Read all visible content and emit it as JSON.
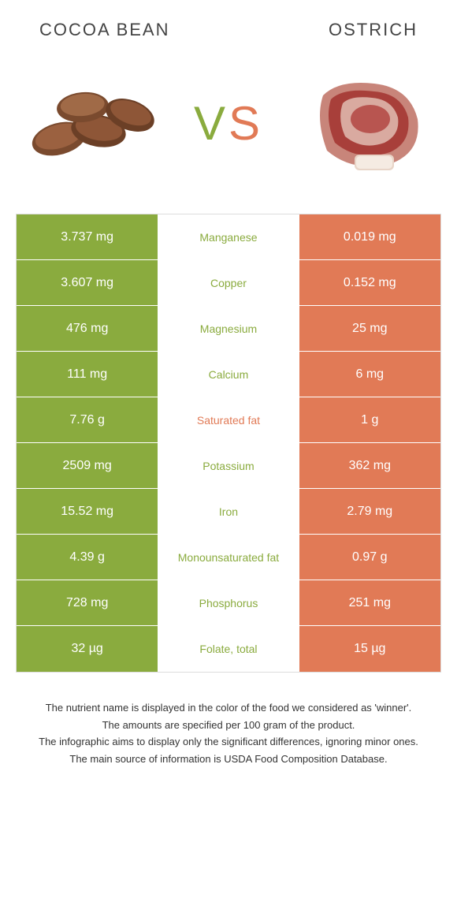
{
  "header": {
    "left_title": "COCOA BEAN",
    "right_title": "OSTRICH"
  },
  "vs": {
    "v": "V",
    "s": "S"
  },
  "colors": {
    "green": "#8aab3e",
    "orange": "#e17a56"
  },
  "rows": [
    {
      "left": "3.737 mg",
      "mid": "Manganese",
      "right": "0.019 mg",
      "winner": "left"
    },
    {
      "left": "3.607 mg",
      "mid": "Copper",
      "right": "0.152 mg",
      "winner": "left"
    },
    {
      "left": "476 mg",
      "mid": "Magnesium",
      "right": "25 mg",
      "winner": "left"
    },
    {
      "left": "111 mg",
      "mid": "Calcium",
      "right": "6 mg",
      "winner": "left"
    },
    {
      "left": "7.76 g",
      "mid": "Saturated fat",
      "right": "1 g",
      "winner": "right"
    },
    {
      "left": "2509 mg",
      "mid": "Potassium",
      "right": "362 mg",
      "winner": "left"
    },
    {
      "left": "15.52 mg",
      "mid": "Iron",
      "right": "2.79 mg",
      "winner": "left"
    },
    {
      "left": "4.39 g",
      "mid": "Monounsaturated fat",
      "right": "0.97 g",
      "winner": "left"
    },
    {
      "left": "728 mg",
      "mid": "Phosphorus",
      "right": "251 mg",
      "winner": "left"
    },
    {
      "left": "32 µg",
      "mid": "Folate, total",
      "right": "15 µg",
      "winner": "left"
    }
  ],
  "footnotes": [
    "The nutrient name is displayed in the color of the food we considered as 'winner'.",
    "The amounts are specified per 100 gram of the product.",
    "The infographic aims to display only the significant differences, ignoring minor ones.",
    "The main source of information is USDA Food Composition Database."
  ]
}
